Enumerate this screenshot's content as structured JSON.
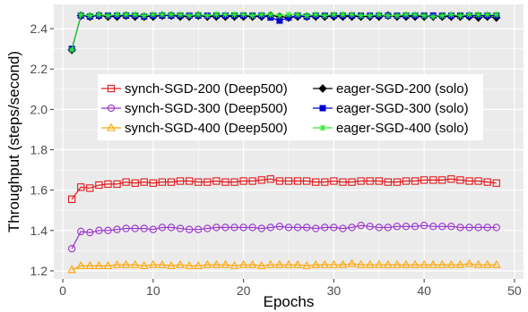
{
  "chart_data": {
    "type": "line",
    "title": "",
    "xlabel": "Epochs",
    "ylabel": "Throughput (steps/second)",
    "xlim": [
      -1,
      51
    ],
    "ylim": [
      1.16,
      2.52
    ],
    "xticks": [
      0,
      10,
      20,
      30,
      40,
      50
    ],
    "yticks": [
      1.2,
      1.4,
      1.6,
      1.8,
      2.0,
      2.2,
      2.4
    ],
    "ytick_labels": [
      "1.2",
      "1.4",
      "1.6",
      "1.8",
      "2.0",
      "2.2",
      "2.4"
    ],
    "grid": true,
    "background": "#ebebeb",
    "legend_position": "center",
    "x": [
      1,
      2,
      3,
      4,
      5,
      6,
      7,
      8,
      9,
      10,
      11,
      12,
      13,
      14,
      15,
      16,
      17,
      18,
      19,
      20,
      21,
      22,
      23,
      24,
      25,
      26,
      27,
      28,
      29,
      30,
      31,
      32,
      33,
      34,
      35,
      36,
      37,
      38,
      39,
      40,
      41,
      42,
      43,
      44,
      45,
      46,
      47,
      48
    ],
    "series": [
      {
        "name": "synch-SGD-200 (Deep500)",
        "color": "#e41a1c",
        "marker": "square",
        "values": [
          1.555,
          1.615,
          1.61,
          1.625,
          1.63,
          1.63,
          1.64,
          1.635,
          1.64,
          1.635,
          1.64,
          1.64,
          1.645,
          1.645,
          1.64,
          1.64,
          1.645,
          1.64,
          1.64,
          1.645,
          1.645,
          1.65,
          1.655,
          1.645,
          1.645,
          1.645,
          1.645,
          1.64,
          1.64,
          1.645,
          1.64,
          1.64,
          1.645,
          1.645,
          1.645,
          1.64,
          1.64,
          1.645,
          1.645,
          1.65,
          1.65,
          1.65,
          1.655,
          1.65,
          1.645,
          1.645,
          1.64,
          1.635
        ]
      },
      {
        "name": "synch-SGD-300 (Deep500)",
        "color": "#9932cc",
        "marker": "circle",
        "values": [
          1.31,
          1.395,
          1.39,
          1.4,
          1.4,
          1.405,
          1.41,
          1.41,
          1.41,
          1.405,
          1.415,
          1.415,
          1.41,
          1.405,
          1.405,
          1.41,
          1.415,
          1.415,
          1.415,
          1.415,
          1.415,
          1.41,
          1.415,
          1.42,
          1.415,
          1.415,
          1.415,
          1.41,
          1.415,
          1.415,
          1.41,
          1.415,
          1.425,
          1.42,
          1.415,
          1.415,
          1.42,
          1.42,
          1.42,
          1.425,
          1.42,
          1.42,
          1.42,
          1.415,
          1.415,
          1.415,
          1.415,
          1.415
        ]
      },
      {
        "name": "synch-SGD-400 (Deep500)",
        "color": "#ffa500",
        "marker": "triangle",
        "values": [
          1.205,
          1.225,
          1.225,
          1.225,
          1.225,
          1.23,
          1.23,
          1.23,
          1.225,
          1.23,
          1.23,
          1.225,
          1.23,
          1.225,
          1.225,
          1.23,
          1.23,
          1.23,
          1.225,
          1.23,
          1.23,
          1.225,
          1.23,
          1.23,
          1.23,
          1.23,
          1.225,
          1.23,
          1.23,
          1.23,
          1.23,
          1.235,
          1.23,
          1.23,
          1.23,
          1.23,
          1.23,
          1.23,
          1.23,
          1.23,
          1.23,
          1.23,
          1.23,
          1.23,
          1.235,
          1.23,
          1.23,
          1.23
        ]
      },
      {
        "name": "eager-SGD-200 (solo)",
        "color": "#000000",
        "marker": "diamond",
        "values": [
          2.295,
          2.465,
          2.46,
          2.465,
          2.46,
          2.46,
          2.465,
          2.46,
          2.46,
          2.46,
          2.465,
          2.465,
          2.46,
          2.46,
          2.465,
          2.46,
          2.46,
          2.46,
          2.46,
          2.46,
          2.46,
          2.46,
          2.465,
          2.46,
          2.455,
          2.46,
          2.46,
          2.46,
          2.46,
          2.46,
          2.46,
          2.46,
          2.46,
          2.46,
          2.46,
          2.465,
          2.46,
          2.46,
          2.46,
          2.46,
          2.46,
          2.46,
          2.46,
          2.46,
          2.46,
          2.455,
          2.46,
          2.455
        ]
      },
      {
        "name": "eager-SGD-300 (solo)",
        "color": "#0000cd",
        "marker": "square-filled",
        "values": [
          2.3,
          2.465,
          2.46,
          2.465,
          2.465,
          2.465,
          2.465,
          2.465,
          2.46,
          2.465,
          2.465,
          2.465,
          2.465,
          2.465,
          2.465,
          2.465,
          2.465,
          2.465,
          2.465,
          2.465,
          2.465,
          2.465,
          2.455,
          2.44,
          2.455,
          2.465,
          2.46,
          2.465,
          2.465,
          2.465,
          2.465,
          2.465,
          2.465,
          2.465,
          2.465,
          2.465,
          2.465,
          2.465,
          2.465,
          2.465,
          2.465,
          2.465,
          2.465,
          2.465,
          2.465,
          2.465,
          2.465,
          2.465
        ]
      },
      {
        "name": "eager-SGD-400 (solo)",
        "color": "#32e632",
        "marker": "star",
        "values": [
          2.295,
          2.47,
          2.465,
          2.47,
          2.465,
          2.47,
          2.47,
          2.47,
          2.465,
          2.47,
          2.47,
          2.47,
          2.47,
          2.465,
          2.47,
          2.465,
          2.47,
          2.47,
          2.47,
          2.47,
          2.465,
          2.47,
          2.47,
          2.465,
          2.47,
          2.47,
          2.465,
          2.47,
          2.465,
          2.47,
          2.47,
          2.47,
          2.465,
          2.465,
          2.47,
          2.465,
          2.465,
          2.47,
          2.47,
          2.465,
          2.46,
          2.465,
          2.47,
          2.465,
          2.47,
          2.47,
          2.47,
          2.47
        ]
      }
    ]
  }
}
